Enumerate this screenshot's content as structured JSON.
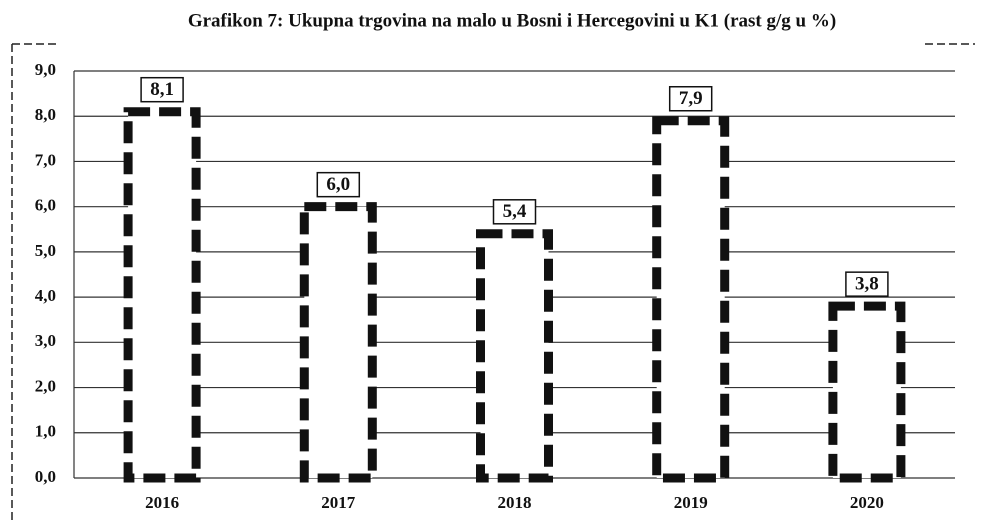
{
  "chart_data": {
    "type": "bar",
    "title": "Grafikon 7: Ukupna trgovina na malo u Bosni i Hercegovini u K1 (rast g/g u %)",
    "categories": [
      "2016",
      "2017",
      "2018",
      "2019",
      "2020"
    ],
    "values": [
      8.1,
      6.0,
      5.4,
      7.9,
      3.8
    ],
    "value_labels": [
      "8,1",
      "6,0",
      "5,4",
      "7,9",
      "3,8"
    ],
    "color": "#ffffff",
    "edge_color": "#111111",
    "ylim": [
      0,
      9
    ],
    "yticks": [
      {
        "value": 0,
        "label": "0,0"
      },
      {
        "value": 1,
        "label": "1,0"
      },
      {
        "value": 2,
        "label": "2,0"
      },
      {
        "value": 3,
        "label": "3,0"
      },
      {
        "value": 4,
        "label": "4,0"
      },
      {
        "value": 5,
        "label": "5,0"
      },
      {
        "value": 6,
        "label": "6,0"
      },
      {
        "value": 7,
        "label": "7,0"
      },
      {
        "value": 8,
        "label": "8,0"
      },
      {
        "value": 9,
        "label": "9,0"
      }
    ],
    "grid": true
  }
}
